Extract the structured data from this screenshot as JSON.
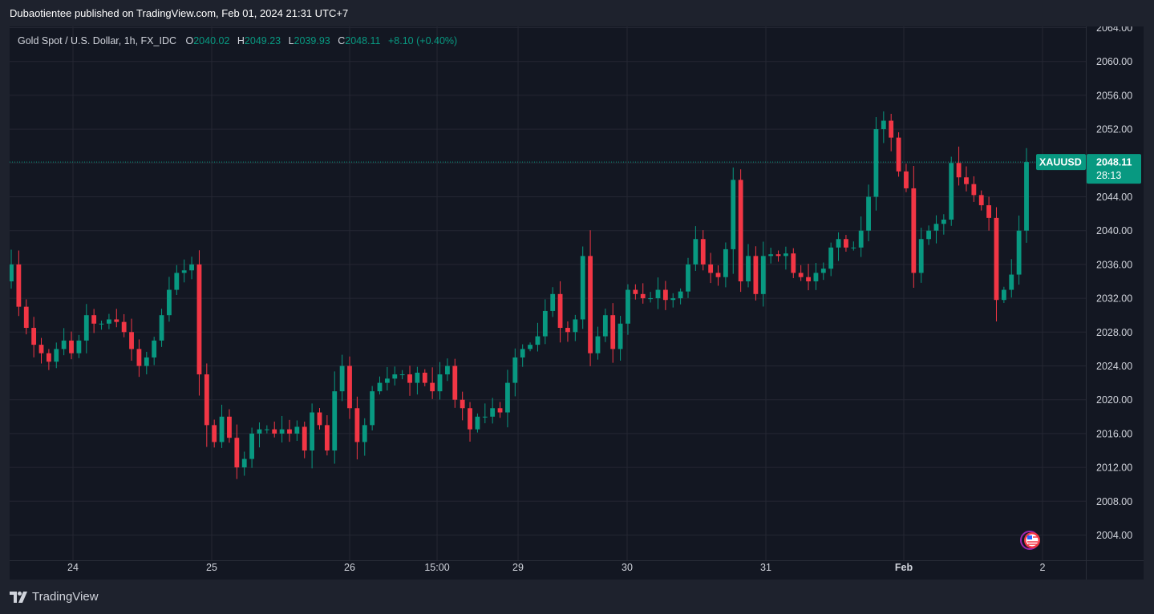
{
  "header": {
    "publisher_line": "Dubaotientee published on TradingView.com, Feb 01, 2024 21:31 UTC+7"
  },
  "legend": {
    "symbol": "Gold Spot / U.S. Dollar, 1h, FX_IDC",
    "open_label": "O",
    "open": "2040.02",
    "high_label": "H",
    "high": "2049.23",
    "low_label": "L",
    "low": "2039.93",
    "close_label": "C",
    "close": "2048.11",
    "change": "+8.10 (+0.40%)"
  },
  "price_tag": {
    "ticker": "XAUUSD",
    "price": "2048.11",
    "countdown": "28:13"
  },
  "footer": {
    "brand": "TradingView"
  },
  "colors": {
    "up": "#089981",
    "down": "#f23645",
    "background": "#131722",
    "frame": "#1e222d",
    "grid": "#242733",
    "text": "#d1d4dc"
  },
  "chart_data": {
    "type": "candlestick",
    "y_ticks": [
      "2064.00",
      "2060.00",
      "2056.00",
      "2052.00",
      "2048.00",
      "2044.00",
      "2040.00",
      "2036.00",
      "2032.00",
      "2028.00",
      "2024.00",
      "2020.00",
      "2016.00",
      "2012.00",
      "2008.00",
      "2004.00"
    ],
    "x_ticks": [
      "24",
      "25",
      "26",
      "15:00",
      "29",
      "30",
      "31",
      "Feb",
      "2"
    ],
    "ylim": [
      2001,
      2065
    ],
    "grid": true,
    "last_price": 2048.11,
    "series": [
      {
        "name": "XAUUSD",
        "anchors": [
          2034,
          2036,
          2031,
          2028.5,
          2026.5,
          2025.5,
          2024.5,
          2026,
          2027,
          2025.5,
          2027,
          2030,
          2029,
          2029,
          2029.5,
          2029.2,
          2028,
          2026,
          2024,
          2025,
          2027,
          2030,
          2033,
          2035,
          2035.3,
          2036,
          2023,
          2017,
          2015,
          2018,
          2015.5,
          2012,
          2013,
          2016,
          2016.5,
          2016.5,
          2016,
          2016.5,
          2016,
          2016.8,
          2014,
          2018.5,
          2017,
          2014,
          2021,
          2024,
          2019,
          2015,
          2017,
          2021,
          2022,
          2022.5,
          2023,
          2023,
          2022,
          2023.2,
          2022,
          2021,
          2023,
          2024,
          2020,
          2019,
          2016.5,
          2018,
          2018,
          2019,
          2018.5,
          2022,
          2025,
          2026,
          2026.5,
          2027.5,
          2030.5,
          2032.5,
          2028.5,
          2028,
          2029.5,
          2037,
          2025.5,
          2027.5,
          2030,
          2026,
          2029,
          2033,
          2032.5,
          2032,
          2032,
          2033,
          2031.8,
          2032,
          2032.8,
          2036,
          2039,
          2036,
          2035,
          2034.5,
          2037.8,
          2046,
          2034,
          2037,
          2032.5,
          2037,
          2037.2,
          2037,
          2037.3,
          2035,
          2034.5,
          2034,
          2035,
          2035.5,
          2038,
          2039,
          2038,
          2038,
          2040,
          2044,
          2052,
          2053,
          2051,
          2047,
          2045,
          2035,
          2039,
          2040,
          2040.8,
          2041.3,
          2048,
          2046.3,
          2045.5,
          2044.2,
          2043,
          2041.5,
          2031.8,
          2033,
          2034.8,
          2040,
          2048.11
        ]
      }
    ]
  }
}
